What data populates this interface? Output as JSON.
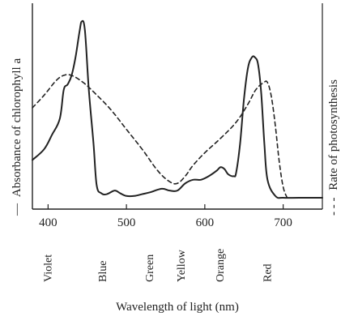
{
  "chart_data": {
    "type": "line",
    "title": "",
    "xlabel": "Wavelength of light (nm)",
    "ylabel_left": "Absorbance of chlorophyll a",
    "ylabel_right": "Rate of photosynthesis",
    "legend_left_symbol": "—",
    "legend_right_symbol": "- - -",
    "xlim": [
      380,
      750
    ],
    "ylim": [
      0,
      1
    ],
    "x_ticks": [
      400,
      500,
      600,
      700
    ],
    "x_tick_labels": [
      "400",
      "500",
      "600",
      "700"
    ],
    "color_bands": [
      {
        "label": "Violet",
        "x": 400
      },
      {
        "label": "Blue",
        "x": 470
      },
      {
        "label": "Green",
        "x": 530
      },
      {
        "label": "Yellow",
        "x": 570
      },
      {
        "label": "Orange",
        "x": 620
      },
      {
        "label": "Red",
        "x": 680
      }
    ],
    "series": [
      {
        "name": "",
        "style": "solid",
        "x": [
          380,
          395,
          405,
          415,
          420,
          425,
          430,
          435,
          440,
          443,
          447,
          452,
          458,
          462,
          468,
          475,
          485,
          492,
          500,
          510,
          520,
          530,
          545,
          555,
          565,
          575,
          585,
          595,
          605,
          615,
          620,
          625,
          630,
          637,
          640,
          645,
          650,
          655,
          660,
          664,
          668,
          672,
          676,
          680,
          690,
          700,
          720,
          750
        ],
        "y": [
          0.21,
          0.27,
          0.35,
          0.44,
          0.6,
          0.63,
          0.68,
          0.78,
          0.92,
          0.98,
          0.93,
          0.6,
          0.3,
          0.07,
          0.025,
          0.02,
          0.04,
          0.025,
          0.01,
          0.01,
          0.02,
          0.03,
          0.05,
          0.04,
          0.04,
          0.08,
          0.1,
          0.1,
          0.12,
          0.15,
          0.17,
          0.16,
          0.13,
          0.12,
          0.14,
          0.3,
          0.55,
          0.72,
          0.78,
          0.78,
          0.74,
          0.58,
          0.3,
          0.1,
          0.01,
          0.0,
          0.0,
          0.0
        ]
      },
      {
        "name": "",
        "style": "dashed",
        "x": [
          380,
          395,
          410,
          420,
          430,
          445,
          460,
          480,
          500,
          520,
          540,
          555,
          565,
          575,
          585,
          600,
          620,
          640,
          655,
          665,
          675,
          680,
          685,
          690,
          695,
          700,
          705
        ],
        "y": [
          0.5,
          0.57,
          0.65,
          0.68,
          0.68,
          0.64,
          0.58,
          0.49,
          0.38,
          0.27,
          0.15,
          0.09,
          0.08,
          0.12,
          0.18,
          0.25,
          0.33,
          0.42,
          0.52,
          0.6,
          0.64,
          0.64,
          0.56,
          0.4,
          0.2,
          0.06,
          0.0
        ]
      }
    ]
  }
}
